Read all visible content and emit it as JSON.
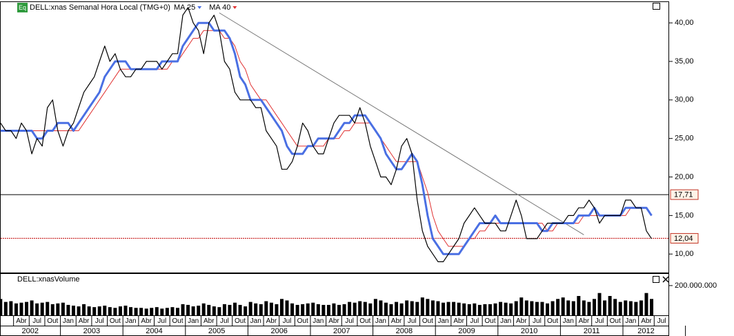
{
  "chart_data": [
    {
      "type": "line",
      "title": "DELL:xnas Semanal Hora Local (TMG+0)",
      "badge": "Eq",
      "categories": [
        "2002-01",
        "2002-02",
        "2002-03",
        "2002-04",
        "2002-05",
        "2002-06",
        "2002-07",
        "2002-08",
        "2002-09",
        "2002-10",
        "2002-11",
        "2002-12",
        "2003-01",
        "2003-02",
        "2003-03",
        "2003-04",
        "2003-05",
        "2003-06",
        "2003-07",
        "2003-08",
        "2003-09",
        "2003-10",
        "2003-11",
        "2003-12",
        "2004-01",
        "2004-02",
        "2004-03",
        "2004-04",
        "2004-05",
        "2004-06",
        "2004-07",
        "2004-08",
        "2004-09",
        "2004-10",
        "2004-11",
        "2004-12",
        "2005-01",
        "2005-02",
        "2005-03",
        "2005-04",
        "2005-05",
        "2005-06",
        "2005-07",
        "2005-08",
        "2005-09",
        "2005-10",
        "2005-11",
        "2005-12",
        "2006-01",
        "2006-02",
        "2006-03",
        "2006-04",
        "2006-05",
        "2006-06",
        "2006-07",
        "2006-08",
        "2006-09",
        "2006-10",
        "2006-11",
        "2006-12",
        "2007-01",
        "2007-02",
        "2007-03",
        "2007-04",
        "2007-05",
        "2007-06",
        "2007-07",
        "2007-08",
        "2007-09",
        "2007-10",
        "2007-11",
        "2007-12",
        "2008-01",
        "2008-02",
        "2008-03",
        "2008-04",
        "2008-05",
        "2008-06",
        "2008-07",
        "2008-08",
        "2008-09",
        "2008-10",
        "2008-11",
        "2008-12",
        "2009-01",
        "2009-02",
        "2009-03",
        "2009-04",
        "2009-05",
        "2009-06",
        "2009-07",
        "2009-08",
        "2009-09",
        "2009-10",
        "2009-11",
        "2009-12",
        "2010-01",
        "2010-02",
        "2010-03",
        "2010-04",
        "2010-05",
        "2010-06",
        "2010-07",
        "2010-08",
        "2010-09",
        "2010-10",
        "2010-11",
        "2010-12",
        "2011-01",
        "2011-02",
        "2011-03",
        "2011-04",
        "2011-05",
        "2011-06",
        "2011-07",
        "2011-08",
        "2011-09",
        "2011-10",
        "2011-11",
        "2011-12",
        "2012-01",
        "2012-02",
        "2012-03",
        "2012-04",
        "2012-05",
        "2012-06"
      ],
      "series": [
        {
          "color": "#000000",
          "values": [
            27,
            26,
            26,
            25,
            27,
            26,
            23,
            25,
            24,
            29,
            30,
            26,
            24,
            26,
            27,
            29,
            31,
            32,
            33,
            35,
            37,
            35,
            36,
            34,
            33,
            33,
            34,
            34,
            35,
            35,
            35,
            34,
            35,
            36,
            36,
            41,
            42,
            40,
            39,
            36,
            40,
            41,
            39,
            35,
            34,
            31,
            30,
            30,
            30,
            29,
            29,
            26,
            25,
            24,
            21,
            21,
            22,
            24,
            27,
            26,
            24,
            23,
            23,
            25,
            27,
            28,
            28,
            28,
            27,
            29,
            27,
            24,
            22,
            20,
            20,
            19,
            21,
            24,
            25,
            23,
            17,
            13,
            11,
            10,
            9,
            9,
            10,
            11,
            12,
            14,
            15,
            16,
            15,
            14,
            14,
            14,
            13,
            13,
            15,
            17,
            15,
            12,
            12,
            12,
            13,
            14,
            14,
            14,
            14,
            15,
            15,
            16,
            16,
            17,
            16,
            14,
            15,
            15,
            15,
            15,
            17,
            17,
            16,
            16,
            13,
            12
          ]
        },
        {
          "name": "MA 25",
          "color": "#4a6fe3",
          "values": [
            26,
            26,
            26,
            26,
            26,
            26,
            26,
            25,
            25,
            26,
            26,
            27,
            27,
            27,
            26,
            27,
            28,
            29,
            30,
            31,
            33,
            34,
            35,
            35,
            35,
            34,
            34,
            34,
            34,
            34,
            34,
            35,
            35,
            35,
            35,
            37,
            38,
            39,
            40,
            40,
            40,
            39,
            39,
            39,
            38,
            36,
            33,
            32,
            30,
            30,
            30,
            29,
            28,
            27,
            26,
            24,
            23,
            23,
            23,
            24,
            24,
            25,
            25,
            25,
            25,
            26,
            27,
            27,
            28,
            28,
            28,
            27,
            26,
            25,
            23,
            22,
            21,
            21,
            22,
            23,
            22,
            19,
            15,
            12,
            11,
            10,
            10,
            10,
            10,
            11,
            12,
            13,
            14,
            14,
            14,
            15,
            14,
            14,
            14,
            14,
            14,
            14,
            14,
            14,
            13,
            13,
            14,
            14,
            14,
            14,
            14,
            15,
            15,
            15,
            16,
            15,
            15,
            15,
            15,
            15,
            16,
            16,
            16,
            16,
            16,
            15
          ]
        },
        {
          "name": "MA 40",
          "color": "#e03030",
          "values": [
            26,
            26,
            26,
            26,
            26,
            26,
            26,
            26,
            26,
            26,
            26,
            26,
            26,
            26,
            26,
            26,
            27,
            28,
            29,
            30,
            31,
            32,
            33,
            34,
            34,
            34,
            34,
            34,
            34,
            34,
            34,
            34,
            34,
            35,
            35,
            36,
            37,
            38,
            38,
            39,
            39,
            39,
            39,
            38,
            38,
            37,
            35,
            34,
            32,
            31,
            30,
            30,
            29,
            28,
            27,
            26,
            25,
            24,
            24,
            24,
            24,
            24,
            24,
            25,
            25,
            25,
            26,
            26,
            27,
            27,
            27,
            27,
            26,
            25,
            24,
            23,
            22,
            22,
            22,
            22,
            22,
            20,
            18,
            15,
            13,
            12,
            11,
            11,
            11,
            11,
            12,
            12,
            13,
            13,
            14,
            14,
            14,
            14,
            14,
            14,
            14,
            14,
            14,
            14,
            14,
            13,
            13,
            14,
            14,
            14,
            14,
            14,
            15,
            15,
            15,
            15,
            15,
            15,
            15,
            15,
            15,
            16,
            16,
            16,
            16,
            15
          ]
        }
      ],
      "ylim": [
        7.6,
        42.7
      ],
      "yticks": [
        {
          "value": 10,
          "label": "10,00"
        },
        {
          "value": 15,
          "label": "15,00"
        },
        {
          "value": 20,
          "label": "20,00"
        },
        {
          "value": 25,
          "label": "25,00"
        },
        {
          "value": 30,
          "label": "30,00"
        },
        {
          "value": 35,
          "label": "35,00"
        },
        {
          "value": 40,
          "label": "40,00"
        }
      ],
      "levels": [
        {
          "value": 17.71,
          "label": "17,71",
          "color": "#000000"
        },
        {
          "value": 12.04,
          "label": "12,04",
          "color": "#c00000"
        }
      ],
      "trendline": {
        "x": [
          "2005-07",
          "2011-05"
        ],
        "y": [
          41.3,
          12.5
        ]
      },
      "quarter_labels": [
        "Abr",
        "Jul",
        "Out",
        "Jan",
        "Abr",
        "Jul",
        "Out",
        "Jan",
        "Abr",
        "Jul",
        "Out",
        "Jan",
        "Abr",
        "Jul",
        "Out",
        "Jan",
        "Abr",
        "Jul",
        "Out",
        "Jan",
        "Abr",
        "Jul",
        "Out",
        "Jan",
        "Abr",
        "Jul",
        "Out",
        "Jan",
        "Abr",
        "Jul",
        "Out",
        "Jan",
        "Abr",
        "Jul",
        "Out",
        "Jan",
        "Abr",
        "Jul",
        "Out",
        "Jan",
        "Abr",
        "Jul"
      ],
      "year_labels": [
        "2002",
        "2003",
        "2004",
        "2005",
        "2006",
        "2007",
        "2008",
        "2009",
        "2010",
        "2011",
        "2012"
      ]
    },
    {
      "type": "bar",
      "title": "DELL:xnasVolume",
      "color": "#000000",
      "values": [
        110000000.0,
        90000000.0,
        95000000.0,
        80000000.0,
        85000000.0,
        90000000.0,
        100000000.0,
        80000000.0,
        85000000.0,
        90000000.0,
        75000000.0,
        80000000.0,
        85000000.0,
        70000000.0,
        65000000.0,
        60000000.0,
        75000000.0,
        60000000.0,
        55000000.0,
        60000000.0,
        65000000.0,
        55000000.0,
        50000000.0,
        60000000.0,
        65000000.0,
        55000000.0,
        50000000.0,
        50000000.0,
        45000000.0,
        50000000.0,
        55000000.0,
        45000000.0,
        50000000.0,
        55000000.0,
        50000000.0,
        75000000.0,
        70000000.0,
        60000000.0,
        65000000.0,
        80000000.0,
        70000000.0,
        60000000.0,
        55000000.0,
        75000000.0,
        70000000.0,
        85000000.0,
        70000000.0,
        60000000.0,
        90000000.0,
        80000000.0,
        75000000.0,
        95000000.0,
        85000000.0,
        75000000.0,
        110000000.0,
        100000000.0,
        80000000.0,
        70000000.0,
        75000000.0,
        80000000.0,
        85000000.0,
        75000000.0,
        70000000.0,
        70000000.0,
        80000000.0,
        70000000.0,
        75000000.0,
        90000000.0,
        85000000.0,
        95000000.0,
        90000000.0,
        80000000.0,
        110000000.0,
        100000000.0,
        85000000.0,
        75000000.0,
        90000000.0,
        80000000.0,
        100000000.0,
        95000000.0,
        90000000.0,
        120000000.0,
        110000000.0,
        100000000.0,
        95000000.0,
        85000000.0,
        90000000.0,
        90000000.0,
        85000000.0,
        80000000.0,
        75000000.0,
        80000000.0,
        70000000.0,
        75000000.0,
        75000000.0,
        80000000.0,
        90000000.0,
        85000000.0,
        80000000.0,
        95000000.0,
        120000000.0,
        100000000.0,
        95000000.0,
        90000000.0,
        90000000.0,
        80000000.0,
        95000000.0,
        110000000.0,
        120000000.0,
        100000000.0,
        95000000.0,
        130000000.0,
        100000000.0,
        90000000.0,
        110000000.0,
        150000000.0,
        100000000.0,
        130000000.0,
        110000000.0,
        90000000.0,
        100000000.0,
        95000000.0,
        90000000.0,
        100000000.0,
        150000000.0,
        110000000.0
      ],
      "ylim": [
        0,
        274000000
      ],
      "yticks": [
        {
          "value": 200000000,
          "label": "200.000.000"
        }
      ]
    }
  ]
}
